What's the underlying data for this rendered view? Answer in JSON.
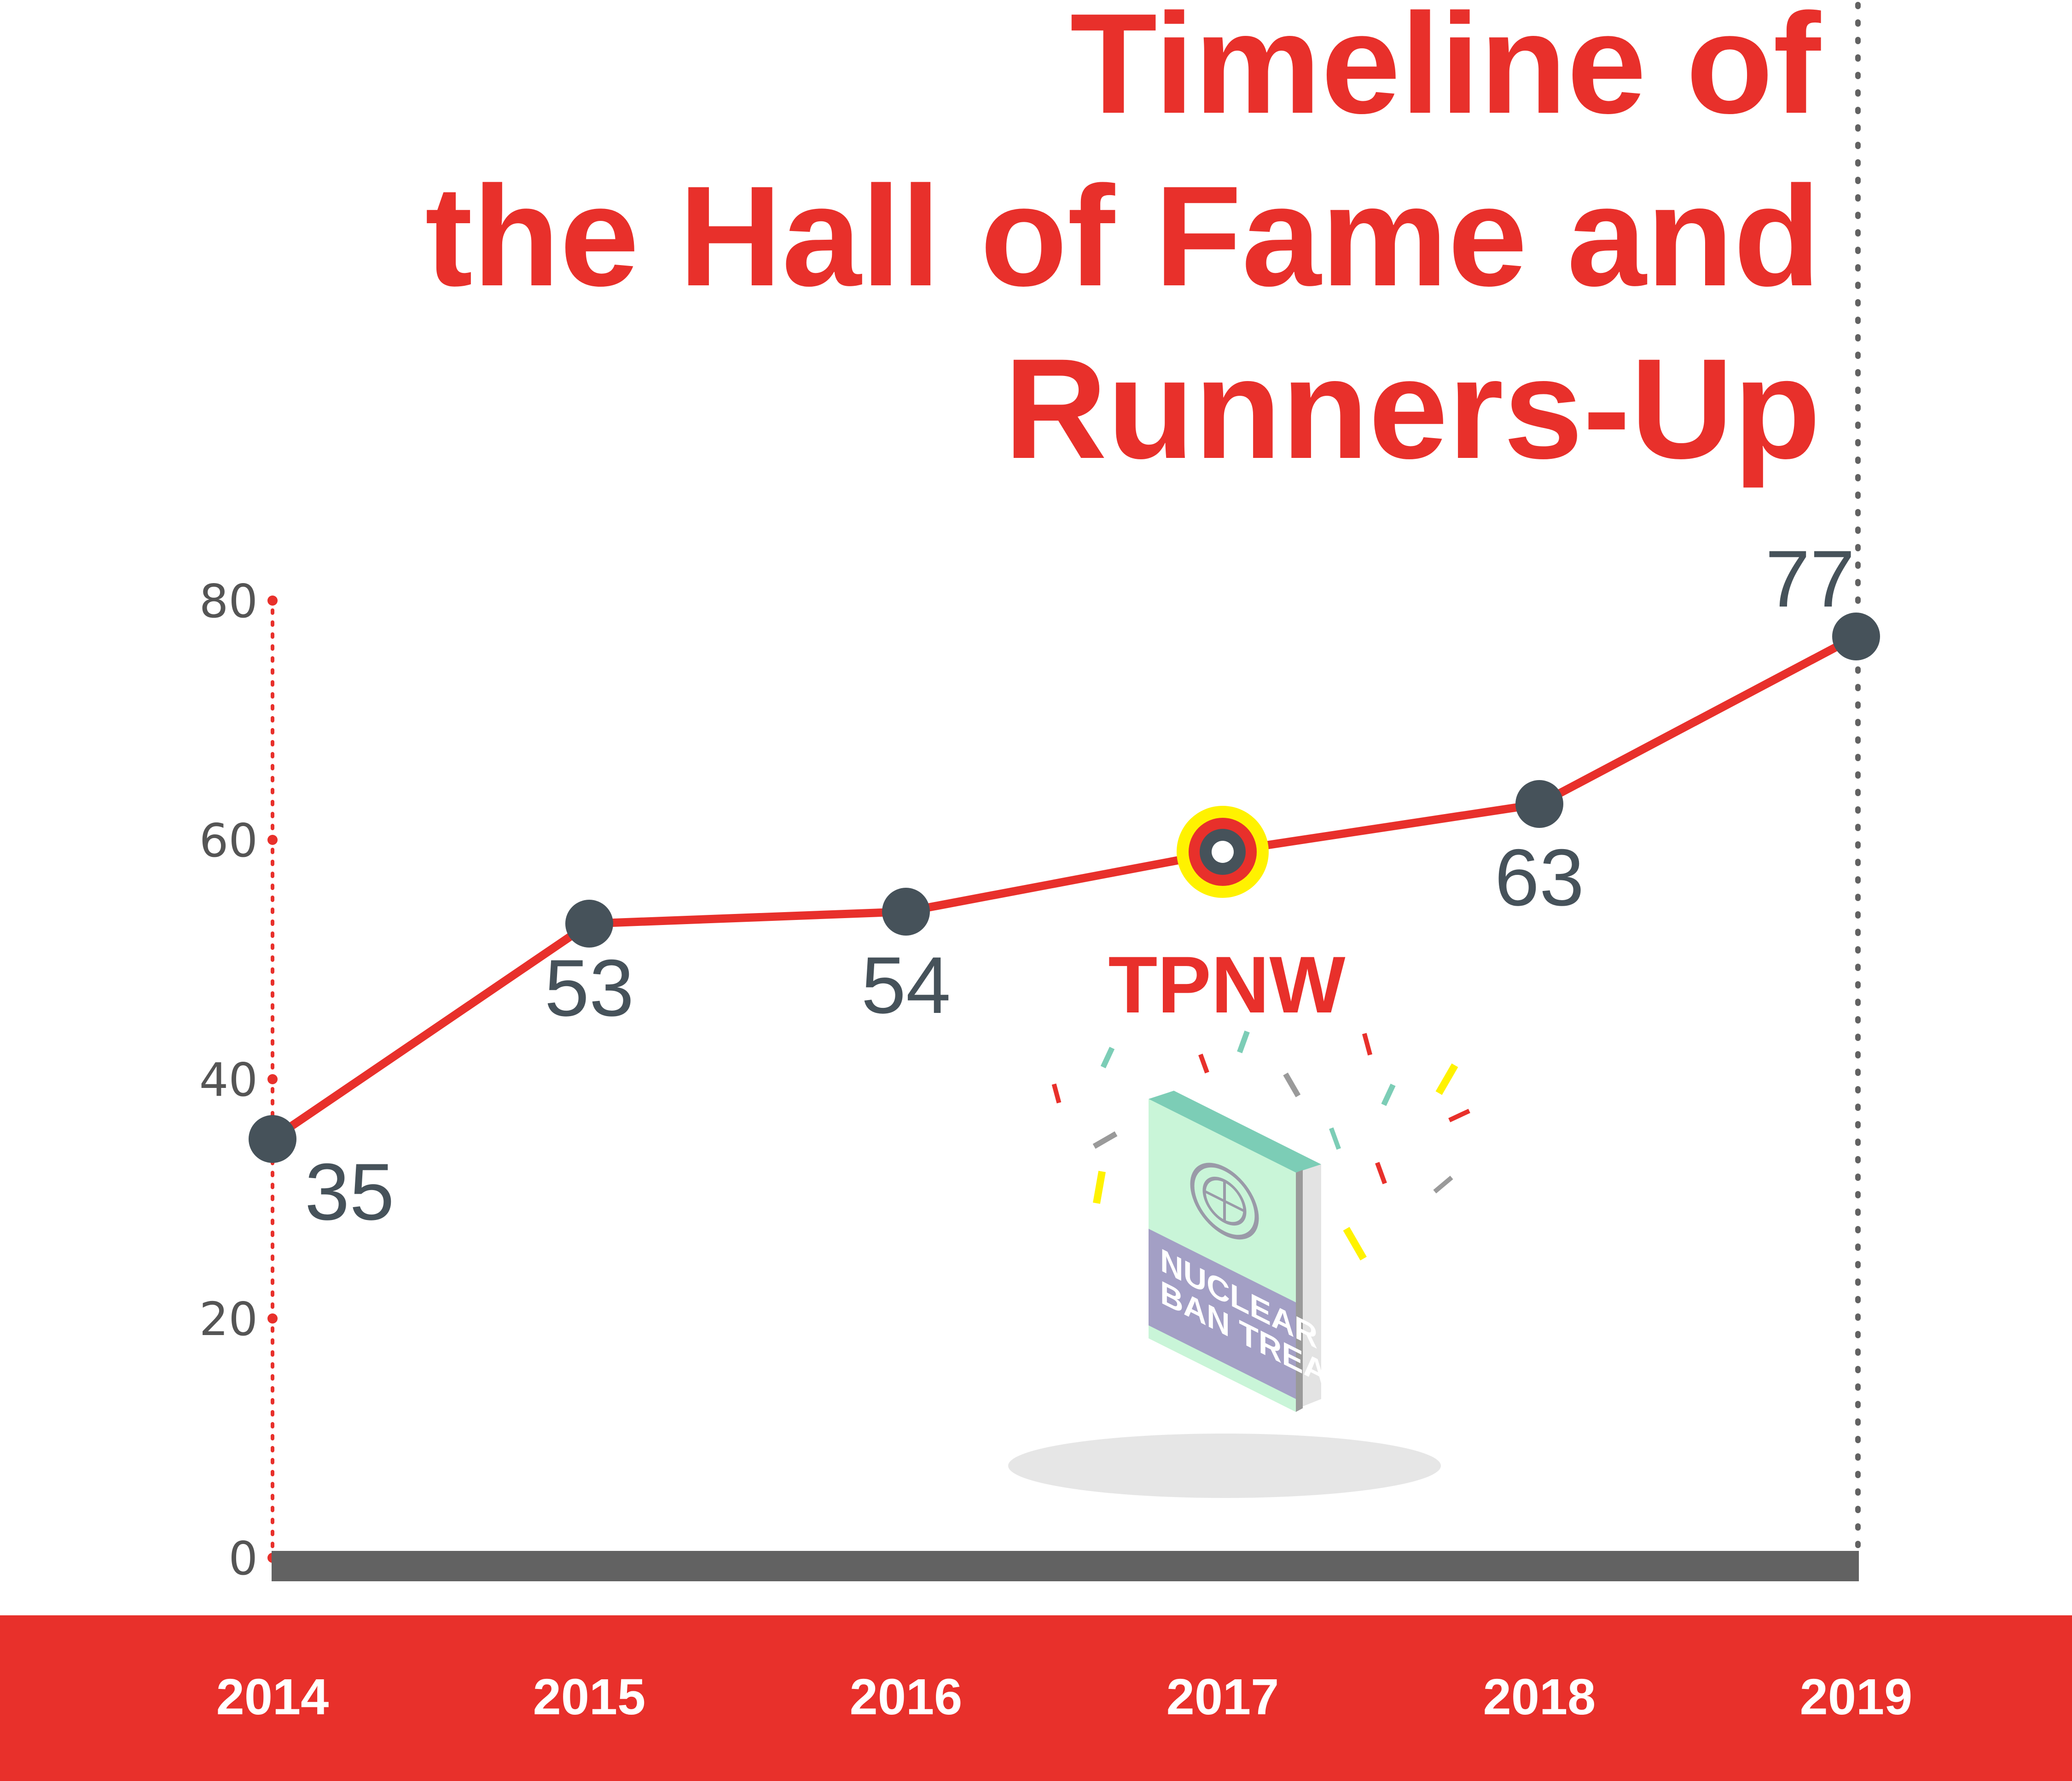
{
  "colors": {
    "accent": "#e8302b",
    "marker": "#46525a",
    "baseline": "#626262",
    "band": "#e8302b",
    "highlight_ring": "#fff200",
    "book_cover": "#c9f5d8",
    "book_band": "#a39fc5",
    "book_spine": "#7ccdb6"
  },
  "title": {
    "line1": "Timeline of",
    "line2": "the Hall of Fame and",
    "line3": "Runners-Up"
  },
  "annotation": {
    "label": "TPNW",
    "book_line1": "NUCLEAR",
    "book_line2": "BAN TREATY",
    "icon": "un-emblem-icon"
  },
  "chart_data": {
    "type": "line",
    "title": "Timeline of the Hall of Fame and Runners-Up",
    "xlabel": "",
    "ylabel": "",
    "categories": [
      "2014",
      "2015",
      "2016",
      "2017",
      "2018",
      "2019"
    ],
    "series": [
      {
        "values": [
          35,
          53,
          54,
          59,
          63,
          77
        ],
        "data_labels": [
          "35",
          "53",
          "54",
          "",
          "63",
          "77"
        ]
      }
    ],
    "highlight": {
      "category": "2017",
      "label": "TPNW"
    },
    "ylim": [
      0,
      80
    ],
    "yticks": [
      "0",
      "20",
      "40",
      "60",
      "80"
    ],
    "grid": false,
    "legend": "none"
  }
}
